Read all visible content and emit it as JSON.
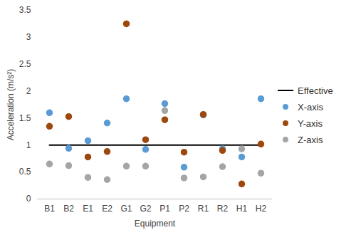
{
  "chart_data": {
    "type": "scatter",
    "x_label": "Equipment",
    "y_label": "Acceleration (m/s²)",
    "categories": [
      "B1",
      "B2",
      "E1",
      "E2",
      "G1",
      "G2",
      "P1",
      "P2",
      "R1",
      "R2",
      "H1",
      "H2"
    ],
    "ylim": [
      0,
      3.5
    ],
    "yticks": [
      0,
      0.5,
      1,
      1.5,
      2,
      2.5,
      3,
      3.5
    ],
    "grid": false,
    "legend": "right",
    "series": [
      {
        "name": "Effective",
        "type": "line",
        "color": "#000000",
        "values": [
          1,
          1,
          1,
          1,
          1,
          1,
          1,
          1,
          1,
          1,
          1,
          1
        ]
      },
      {
        "name": "X-axis",
        "type": "scatter",
        "color": "#5b9bd5",
        "values": [
          1.6,
          0.94,
          1.08,
          1.41,
          1.86,
          0.92,
          1.77,
          0.59,
          1.56,
          0.93,
          0.78,
          1.86
        ]
      },
      {
        "name": "Y-axis",
        "type": "scatter",
        "color": "#9e480e",
        "values": [
          1.35,
          1.53,
          0.78,
          0.88,
          3.25,
          1.1,
          1.47,
          0.87,
          1.57,
          0.9,
          0.28,
          1.02
        ]
      },
      {
        "name": "Z-axis",
        "type": "scatter",
        "color": "#a5a5a5",
        "values": [
          0.65,
          0.62,
          0.4,
          0.36,
          0.61,
          0.61,
          1.64,
          0.39,
          0.41,
          0.6,
          0.93,
          0.48
        ]
      }
    ]
  }
}
